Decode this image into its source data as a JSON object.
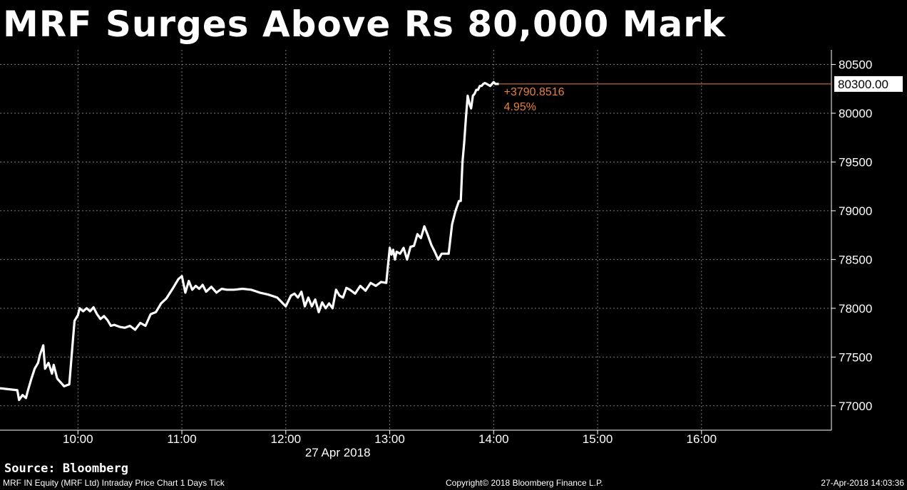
{
  "title": "MRF Surges Above Rs 80,000 Mark",
  "source": "Source: Bloomberg",
  "footer": {
    "left": "MRF IN Equity (MRF Ltd) Intraday Price Chart 1 Days  Tick",
    "center": "Copyright© 2018 Bloomberg Finance L.P.",
    "right": "27-Apr-2018 14:03:36"
  },
  "colors": {
    "background": "#000000",
    "line": "#ffffff",
    "last_price_line": "#e8823a",
    "grid": "#7a7a7a"
  },
  "chart_data": {
    "type": "line",
    "title": "MRF Surges Above Rs 80,000 Mark",
    "date_label": "27 Apr 2018",
    "xlim": [
      "09:15",
      "17:15"
    ],
    "ylim": [
      76750,
      80650
    ],
    "y_ticks": [
      77000,
      77500,
      78000,
      78500,
      79000,
      79500,
      80000,
      80500
    ],
    "x_ticks": [
      "10:00",
      "11:00",
      "12:00",
      "13:00",
      "14:00",
      "15:00",
      "16:00"
    ],
    "grid": true,
    "last_price": "80300.00",
    "change": "+3790.8516",
    "change_pct": "4.95%",
    "series": [
      {
        "x": [
          "09:15",
          "09:25",
          "09:26",
          "09:28",
          "09:30",
          "09:31",
          "09:33",
          "09:35",
          "09:37",
          "09:38",
          "09:40",
          "09:41",
          "09:43",
          "09:45",
          "09:46",
          "09:48",
          "09:49",
          "09:51",
          "09:52",
          "09:55",
          "09:57",
          "09:58",
          "10:00",
          "10:01",
          "10:03",
          "10:05",
          "10:07",
          "10:09",
          "10:11",
          "10:13",
          "10:15",
          "10:17",
          "10:19",
          "10:21",
          "10:24",
          "10:27",
          "10:30",
          "10:33",
          "10:36",
          "10:39",
          "10:42",
          "10:45",
          "10:48",
          "10:51",
          "10:55",
          "10:58",
          "11:00",
          "11:02",
          "11:04",
          "11:06",
          "11:08",
          "11:10",
          "11:12",
          "11:14",
          "11:17",
          "11:20",
          "11:23",
          "11:26",
          "11:30",
          "11:35",
          "11:40",
          "11:45",
          "11:50",
          "11:55",
          "12:00",
          "12:03",
          "12:05",
          "12:07",
          "12:09",
          "12:11",
          "12:13",
          "12:15",
          "12:17",
          "12:19",
          "12:21",
          "12:23",
          "12:25",
          "12:27",
          "12:29",
          "12:31",
          "12:33",
          "12:35",
          "12:37",
          "12:40",
          "12:43",
          "12:46",
          "12:49",
          "12:52",
          "12:55",
          "12:58",
          "13:00",
          "13:01",
          "13:02",
          "13:03",
          "13:04",
          "13:06",
          "13:08",
          "13:10",
          "13:12",
          "13:14",
          "13:16",
          "13:18",
          "13:20",
          "13:22",
          "13:24",
          "13:26",
          "13:28",
          "13:30",
          "13:32",
          "13:34",
          "13:36",
          "13:38",
          "13:40",
          "13:41",
          "13:42",
          "13:43",
          "13:44",
          "13:45",
          "13:46",
          "13:47",
          "13:48",
          "13:49",
          "13:50",
          "13:51",
          "13:52",
          "13:53",
          "13:54",
          "13:55",
          "13:56",
          "13:57",
          "13:58",
          "13:59",
          "14:00",
          "14:01",
          "14:02",
          "14:03"
        ],
        "values": [
          77180,
          77160,
          77060,
          77110,
          77080,
          77150,
          77270,
          77380,
          77440,
          77520,
          77620,
          77380,
          77440,
          77330,
          77420,
          77280,
          77260,
          77220,
          77200,
          77220,
          77650,
          77870,
          77930,
          78000,
          77970,
          78000,
          77970,
          78010,
          77940,
          77890,
          77920,
          77880,
          77820,
          77830,
          77810,
          77800,
          77820,
          77780,
          77850,
          77820,
          77940,
          77960,
          78050,
          78100,
          78210,
          78300,
          78330,
          78160,
          78280,
          78190,
          78230,
          78200,
          78240,
          78170,
          78220,
          78160,
          78200,
          78190,
          78190,
          78200,
          78190,
          78160,
          78140,
          78110,
          78020,
          78130,
          78150,
          78110,
          78170,
          78020,
          78110,
          78020,
          78090,
          77960,
          78060,
          78000,
          78050,
          78000,
          78190,
          78130,
          78110,
          78210,
          78190,
          78150,
          78230,
          78180,
          78260,
          78230,
          78270,
          78260,
          78620,
          78550,
          78600,
          78500,
          78580,
          78560,
          78620,
          78500,
          78630,
          78640,
          78760,
          78720,
          78840,
          78750,
          78650,
          78580,
          78500,
          78560,
          78560,
          78560,
          78860,
          79000,
          79100,
          79100,
          79500,
          79700,
          79950,
          80180,
          80100,
          80050,
          80180,
          80200,
          80240,
          80240,
          80280,
          80280,
          80300,
          80310,
          80300,
          80290,
          80280,
          80300,
          80320,
          80300,
          80300,
          80300
        ]
      }
    ]
  }
}
